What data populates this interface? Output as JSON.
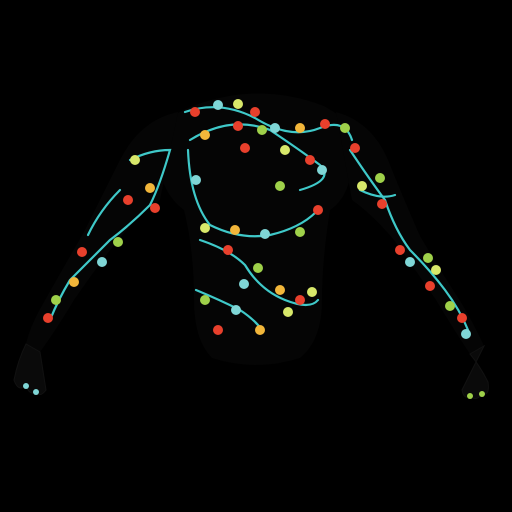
{
  "image": {
    "subject": "garment-render",
    "colors": {
      "background": "#000000",
      "garment": "#050505",
      "hands": "#0a0a0a",
      "wire": "#3fc9c9",
      "bulbs": [
        "#e8402c",
        "#9fd14a",
        "#f2b63a",
        "#7fd6d6",
        "#d8e86a"
      ]
    }
  }
}
